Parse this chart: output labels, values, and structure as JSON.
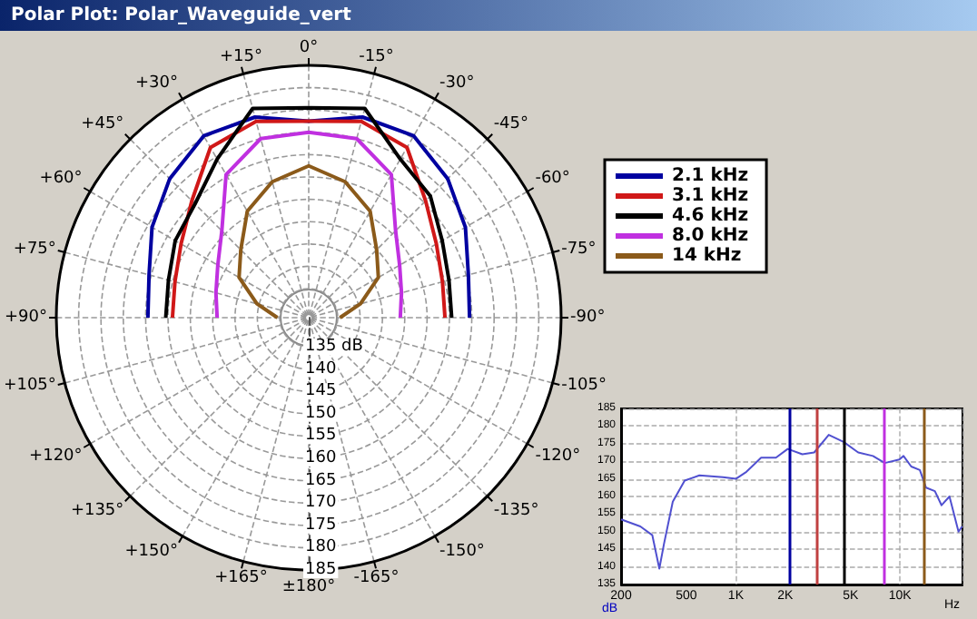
{
  "chart_data": [
    {
      "type": "radar",
      "title": "Polar Plot: Polar_Waveguide_vert",
      "categories": [
        "0°",
        "-15°",
        "-30°",
        "-45°",
        "-60°",
        "-75°",
        "-90°",
        "-105°",
        "-120°",
        "-135°",
        "-150°",
        "-165°",
        "±180°",
        "+165°",
        "+150°",
        "+135°",
        "+120°",
        "+105°",
        "+90°",
        "+75°",
        "+60°",
        "+45°",
        "+30°",
        "+15°"
      ],
      "series": [
        {
          "name": "2.1 kHz",
          "color": "#0000a0",
          "values": [
            172.5,
            175,
            175.5,
            172.5,
            169,
            165.5,
            164.5,
            null,
            null,
            null,
            null,
            null,
            null,
            null,
            null,
            null,
            null,
            null,
            164.5,
            165.5,
            169,
            172.5,
            175.5,
            175
          ]
        },
        {
          "name": "3.1 kHz",
          "color": "#d01818",
          "values": [
            172.5,
            174,
            172.5,
            165.5,
            161.5,
            159.5,
            159,
            null,
            null,
            null,
            null,
            null,
            null,
            null,
            null,
            null,
            null,
            null,
            159,
            159.5,
            161.5,
            165.5,
            172.5,
            174
          ]
        },
        {
          "name": "4.6 kHz",
          "color": "#000000",
          "values": [
            175.5,
            177,
            169.5,
            167,
            163,
            161,
            160.5,
            null,
            null,
            null,
            null,
            null,
            null,
            null,
            null,
            null,
            null,
            null,
            160.5,
            161,
            163,
            164.5,
            169.5,
            177
          ]
        },
        {
          "name": "8.0 kHz",
          "color": "#c030e0",
          "values": [
            170,
            170,
            165.5,
            156,
            152,
            150,
            149,
            null,
            null,
            null,
            null,
            null,
            null,
            null,
            null,
            null,
            null,
            null,
            149,
            150,
            152,
            156,
            165.5,
            170
          ]
        },
        {
          "name": "14 kHz",
          "color": "#8b5a1a",
          "values": [
            162.5,
            160,
            156,
            150,
            146.5,
            140.5,
            135.5,
            null,
            null,
            null,
            null,
            null,
            null,
            null,
            null,
            null,
            null,
            null,
            135.5,
            140.5,
            146.5,
            150,
            156,
            160
          ]
        }
      ],
      "ylim": [
        128.5,
        185
      ],
      "yticks": [
        {
          "value": 135,
          "label": "135 dB"
        },
        140,
        145,
        150,
        155,
        160,
        165,
        170,
        175,
        180,
        185
      ],
      "grid": true,
      "legend": "right"
    },
    {
      "type": "line",
      "xlabel": "Hz",
      "ylabel": "dB",
      "x": [
        200,
        262,
        310,
        342,
        365,
        413,
        488,
        600,
        834,
        1000,
        1160,
        1425,
        1755,
        2070,
        2540,
        3000,
        3680,
        4530,
        5560,
        6840,
        8070,
        9910,
        10500,
        11700,
        13200,
        14400,
        16300,
        17900,
        20000,
        22700,
        23900
      ],
      "series": [
        {
          "color": "#5050d0",
          "values": [
            153.5,
            151.5,
            149,
            139.5,
            146.5,
            158.5,
            164.5,
            166,
            165.5,
            165,
            167,
            171,
            171,
            173.5,
            172,
            172.5,
            177.5,
            175.5,
            172.5,
            171.5,
            169.5,
            170.5,
            171.5,
            168.5,
            167.5,
            162.5,
            161.5,
            157.5,
            160,
            150,
            151.5
          ]
        }
      ],
      "xlim": [
        200,
        24000
      ],
      "xticks": [
        200,
        500,
        {
          "value": 1000,
          "label": "1K"
        },
        {
          "value": 2000,
          "label": "2K"
        },
        {
          "value": 5000,
          "label": "5K"
        },
        {
          "value": 10000,
          "label": "10K"
        }
      ],
      "ylim": [
        135,
        185
      ],
      "yticks": [
        135,
        140,
        145,
        150,
        155,
        160,
        165,
        170,
        175,
        180,
        185
      ],
      "log": "x",
      "grid": true,
      "ref_lines": [
        {
          "axis": "x",
          "value": 2100,
          "color": "#0000a0"
        },
        {
          "axis": "x",
          "value": 3100,
          "color": "#c04040"
        },
        {
          "axis": "x",
          "value": 4600,
          "color": "#000000"
        },
        {
          "axis": "x",
          "value": 8000,
          "color": "#c030e0"
        },
        {
          "axis": "x",
          "value": 14000,
          "color": "#8b5a1a"
        }
      ]
    }
  ]
}
